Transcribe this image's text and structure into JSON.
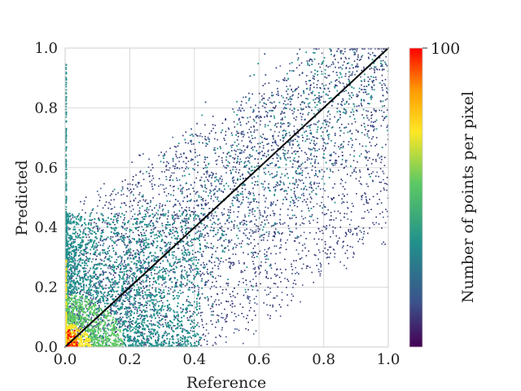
{
  "chart_data": {
    "type": "heatmap",
    "xlabel": "Reference",
    "ylabel": "Predicted",
    "xlim": [
      0.0,
      1.0
    ],
    "ylim": [
      0.0,
      1.0
    ],
    "x_ticks": [
      "0.0",
      "0.2",
      "0.4",
      "0.6",
      "0.8",
      "1.0"
    ],
    "y_ticks": [
      "0.0",
      "0.2",
      "0.4",
      "0.6",
      "0.8",
      "1.0"
    ],
    "grid": true,
    "reference_line": {
      "from": [
        0.0,
        0.0
      ],
      "to": [
        1.0,
        1.0
      ],
      "color": "#000000"
    },
    "density": {
      "description_hidden": true,
      "max_near": [
        0.0,
        0.0
      ],
      "dense_region": {
        "x": [
          0.0,
          0.35
        ],
        "y": [
          0.0,
          0.4
        ]
      }
    },
    "colorbar": {
      "label": "Number of points per pixel",
      "max_label": "100",
      "min": 0,
      "max": 100,
      "colormap": "viridis-to-red"
    }
  },
  "colors": {
    "grid": "#d9d9d9",
    "axes_frame": "#cccccc",
    "low": "#3b528b",
    "mid": "#21918c",
    "high": "#5ec962",
    "peak": "#fde725",
    "hot": "#ff0000"
  }
}
